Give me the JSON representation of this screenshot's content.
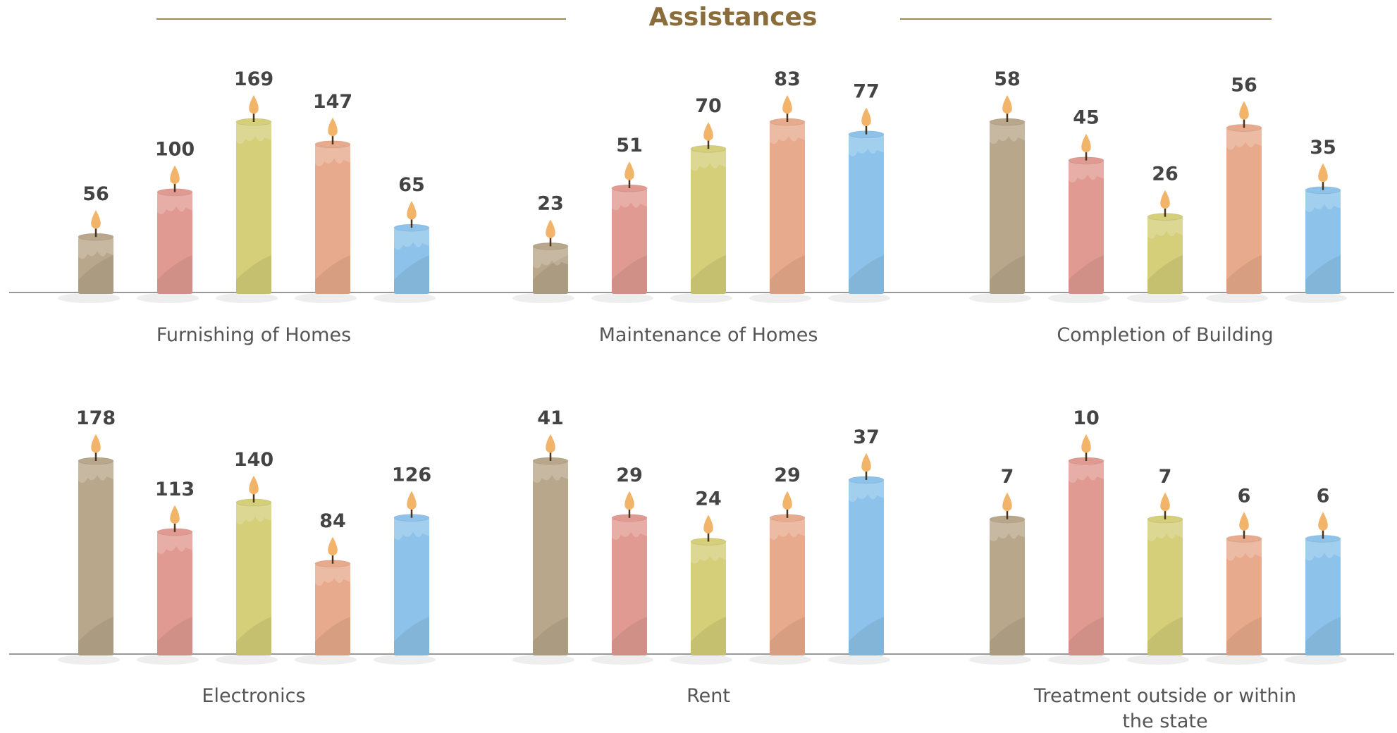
{
  "title": "Assistances",
  "chart_data": [
    {
      "type": "bar",
      "title": "Furnishing of Homes",
      "values": [
        56,
        100,
        169,
        147,
        65
      ],
      "colors": [
        "#b9a78b",
        "#e09a92",
        "#d4cf78",
        "#e8aa8c",
        "#8dc3ea"
      ]
    },
    {
      "type": "bar",
      "title": "Maintenance of Homes",
      "values": [
        23,
        51,
        70,
        83,
        77
      ],
      "colors": [
        "#b9a78b",
        "#e09a92",
        "#d4cf78",
        "#e8aa8c",
        "#8dc3ea"
      ]
    },
    {
      "type": "bar",
      "title": "Completion of Building",
      "values": [
        58,
        45,
        26,
        56,
        35
      ],
      "colors": [
        "#b9a78b",
        "#e09a92",
        "#d4cf78",
        "#e8aa8c",
        "#8dc3ea"
      ]
    },
    {
      "type": "bar",
      "title": "Electronics",
      "values": [
        178,
        113,
        140,
        84,
        126
      ],
      "colors": [
        "#b9a78b",
        "#e09a92",
        "#d4cf78",
        "#e8aa8c",
        "#8dc3ea"
      ]
    },
    {
      "type": "bar",
      "title": "Rent",
      "values": [
        41,
        29,
        24,
        29,
        37
      ],
      "colors": [
        "#b9a78b",
        "#e09a92",
        "#d4cf78",
        "#e8aa8c",
        "#8dc3ea"
      ]
    },
    {
      "type": "bar",
      "title": "Treatment outside or within the state",
      "values": [
        7,
        10,
        7,
        6,
        6
      ],
      "colors": [
        "#b9a78b",
        "#e09a92",
        "#d4cf78",
        "#e8aa8c",
        "#8dc3ea"
      ]
    }
  ]
}
